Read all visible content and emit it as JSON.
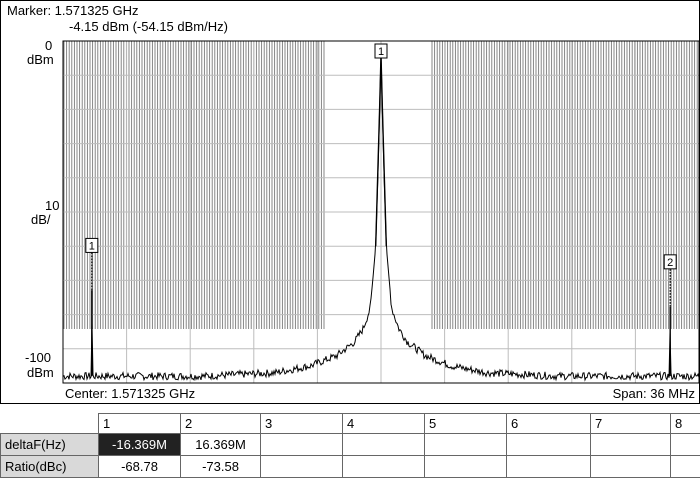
{
  "marker": {
    "line1": "Marker: 1.571325 GHz",
    "line2": "-4.15 dBm (-54.15 dBm/Hz)"
  },
  "axis": {
    "ref_level": "0",
    "ref_unit": "dBm",
    "scale_value": "10",
    "scale_unit": "dB/",
    "bottom_level": "-100",
    "bottom_unit": "dBm"
  },
  "footer": {
    "center": "Center: 1.571325 GHz",
    "span": "Span: 36 MHz"
  },
  "markers_on_trace": [
    {
      "label": "1"
    },
    {
      "label": "2"
    },
    {
      "label": "1"
    }
  ],
  "table": {
    "columns": [
      "1",
      "2",
      "3",
      "4",
      "5",
      "6",
      "7",
      "8"
    ],
    "rows": [
      {
        "label": "deltaF(Hz)",
        "cells": [
          "-16.369M",
          "16.369M",
          "",
          "",
          "",
          "",
          "",
          ""
        ]
      },
      {
        "label": "Ratio(dBc)",
        "cells": [
          "-68.78",
          "-73.58",
          "",
          "",
          "",
          "",
          "",
          ""
        ]
      }
    ]
  },
  "chart_data": {
    "type": "line",
    "title": "",
    "xlabel": "",
    "ylabel": "",
    "x_center_ghz": 1.571325,
    "span_mhz": 36,
    "ylim": [
      -100,
      0
    ],
    "series": [
      {
        "x_offset_mhz": [
          -18,
          -16.4,
          -16.37,
          -16.34,
          -14,
          -10,
          -6,
          -4,
          -2.5,
          -1.5,
          -1,
          -0.6,
          -0.3,
          -0.15,
          0,
          0.15,
          0.3,
          0.6,
          1,
          1.5,
          2.5,
          4,
          6,
          10,
          14,
          16.34,
          16.37,
          16.4,
          18
        ],
        "y_dbm": [
          -98,
          -98,
          -72.9,
          -98,
          -98,
          -98,
          -97,
          -95,
          -92,
          -88,
          -84,
          -78,
          -60,
          -35,
          -4.15,
          -35,
          -60,
          -78,
          -84,
          -88,
          -92,
          -95,
          -97,
          -98,
          -98,
          -98,
          -77.7,
          -98,
          -98
        ]
      }
    ],
    "markers": [
      {
        "label": "1",
        "x_offset_mhz": -16.369,
        "y_dbm": -72.93
      },
      {
        "label": "2",
        "x_offset_mhz": 16.369,
        "y_dbm": -77.73
      },
      {
        "label": "1",
        "x_offset_mhz": 0,
        "y_dbm": -4.15
      }
    ],
    "grid": true
  }
}
